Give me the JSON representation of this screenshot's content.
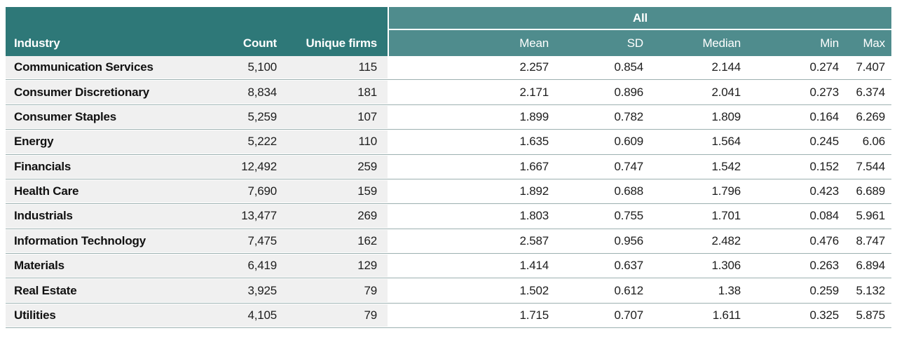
{
  "table": {
    "group_header": "All",
    "columns_left": [
      "Industry",
      "Count",
      "Unique firms"
    ],
    "columns_right": [
      "Mean",
      "SD",
      "Median",
      "Min",
      "Max"
    ],
    "rows": [
      {
        "industry": "Communication Services",
        "count": "5,100",
        "unique_firms": "115",
        "mean": "2.257",
        "sd": "0.854",
        "median": "2.144",
        "min": "0.274",
        "max": "7.407"
      },
      {
        "industry": "Consumer Discretionary",
        "count": "8,834",
        "unique_firms": "181",
        "mean": "2.171",
        "sd": "0.896",
        "median": "2.041",
        "min": "0.273",
        "max": "6.374"
      },
      {
        "industry": "Consumer Staples",
        "count": "5,259",
        "unique_firms": "107",
        "mean": "1.899",
        "sd": "0.782",
        "median": "1.809",
        "min": "0.164",
        "max": "6.269"
      },
      {
        "industry": "Energy",
        "count": "5,222",
        "unique_firms": "110",
        "mean": "1.635",
        "sd": "0.609",
        "median": "1.564",
        "min": "0.245",
        "max": "6.06"
      },
      {
        "industry": "Financials",
        "count": "12,492",
        "unique_firms": "259",
        "mean": "1.667",
        "sd": "0.747",
        "median": "1.542",
        "min": "0.152",
        "max": "7.544"
      },
      {
        "industry": "Health Care",
        "count": "7,690",
        "unique_firms": "159",
        "mean": "1.892",
        "sd": "0.688",
        "median": "1.796",
        "min": "0.423",
        "max": "6.689"
      },
      {
        "industry": "Industrials",
        "count": "13,477",
        "unique_firms": "269",
        "mean": "1.803",
        "sd": "0.755",
        "median": "1.701",
        "min": "0.084",
        "max": "5.961"
      },
      {
        "industry": "Information Technology",
        "count": "7,475",
        "unique_firms": "162",
        "mean": "2.587",
        "sd": "0.956",
        "median": "2.482",
        "min": "0.476",
        "max": "8.747"
      },
      {
        "industry": "Materials",
        "count": "6,419",
        "unique_firms": "129",
        "mean": "1.414",
        "sd": "0.637",
        "median": "1.306",
        "min": "0.263",
        "max": "6.894"
      },
      {
        "industry": "Real Estate",
        "count": "3,925",
        "unique_firms": "79",
        "mean": "1.502",
        "sd": "0.612",
        "median": "1.38",
        "min": "0.259",
        "max": "5.132"
      },
      {
        "industry": "Utilities",
        "count": "4,105",
        "unique_firms": "79",
        "mean": "1.715",
        "sd": "0.707",
        "median": "1.611",
        "min": "0.325",
        "max": "5.875"
      }
    ]
  },
  "colors": {
    "header_dark_teal": "#2e7878",
    "header_light_teal": "#4f8c8d",
    "row_left_bg": "#f0f0f0",
    "row_right_bg": "#ffffff",
    "divider_line": "#9cb0b0",
    "header_text": "#ffffff",
    "body_text": "#1d1d1d"
  }
}
